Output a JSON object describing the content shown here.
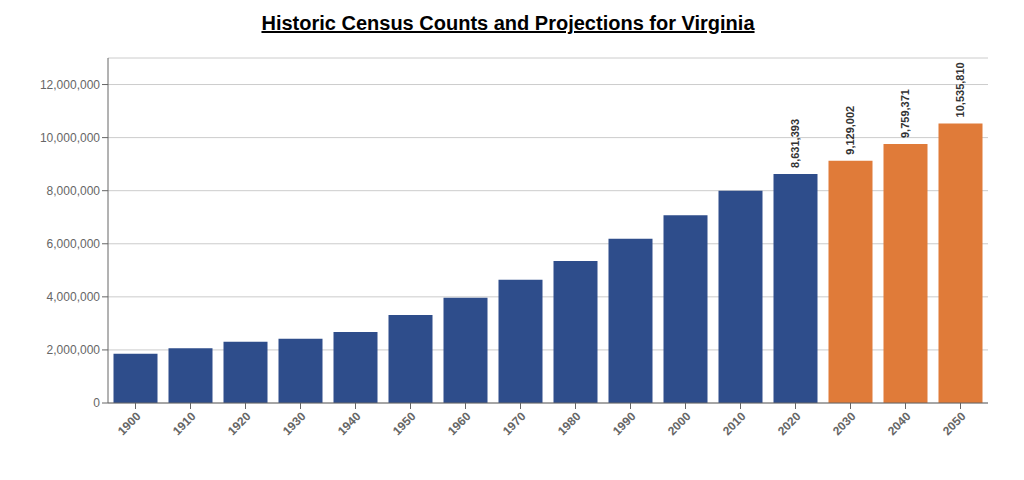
{
  "chart_data": {
    "type": "bar",
    "title": "Historic Census Counts and Projections for Virginia",
    "categories": [
      "1900",
      "1910",
      "1920",
      "1930",
      "1940",
      "1950",
      "1960",
      "1970",
      "1980",
      "1990",
      "2000",
      "2010",
      "2020",
      "2030",
      "2040",
      "2050"
    ],
    "values": [
      1854184,
      2061612,
      2309187,
      2421851,
      2677773,
      3318680,
      3966949,
      4648494,
      5346818,
      6187358,
      7078515,
      8001024,
      8631393,
      9129002,
      9759371,
      10535810
    ],
    "colors": [
      "#2E4D8B",
      "#2E4D8B",
      "#2E4D8B",
      "#2E4D8B",
      "#2E4D8B",
      "#2E4D8B",
      "#2E4D8B",
      "#2E4D8B",
      "#2E4D8B",
      "#2E4D8B",
      "#2E4D8B",
      "#2E4D8B",
      "#2E4D8B",
      "#E07B39",
      "#E07B39",
      "#E07B39"
    ],
    "annotations": [
      {
        "category": "2020",
        "text": "8,631,393"
      },
      {
        "category": "2030",
        "text": "9,129,002"
      },
      {
        "category": "2040",
        "text": "9,759,371"
      },
      {
        "category": "2050",
        "text": "10,535,810"
      }
    ],
    "ylim": [
      0,
      13000000
    ],
    "yticks": [
      0,
      {
        "value": 2000000,
        "label": "2,000,000"
      },
      {
        "value": 4000000,
        "label": "4,000,000"
      },
      {
        "value": 6000000,
        "label": "6,000,000"
      },
      {
        "value": 8000000,
        "label": "8,000,000"
      },
      {
        "value": 10000000,
        "label": "10,000,000"
      },
      {
        "value": 12000000,
        "label": "12,000,000"
      }
    ],
    "grid": true
  }
}
